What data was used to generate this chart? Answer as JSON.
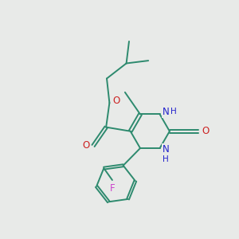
{
  "background_color": "#e8eae8",
  "bond_color": "#2d8a6e",
  "bond_lw": 1.4,
  "N_color": "#2222cc",
  "O_color": "#cc2222",
  "F_color": "#cc44cc",
  "figsize": [
    3.0,
    3.0
  ],
  "dpi": 100,
  "xlim": [
    -2.6,
    2.4
  ],
  "ylim": [
    -2.6,
    2.4
  ]
}
